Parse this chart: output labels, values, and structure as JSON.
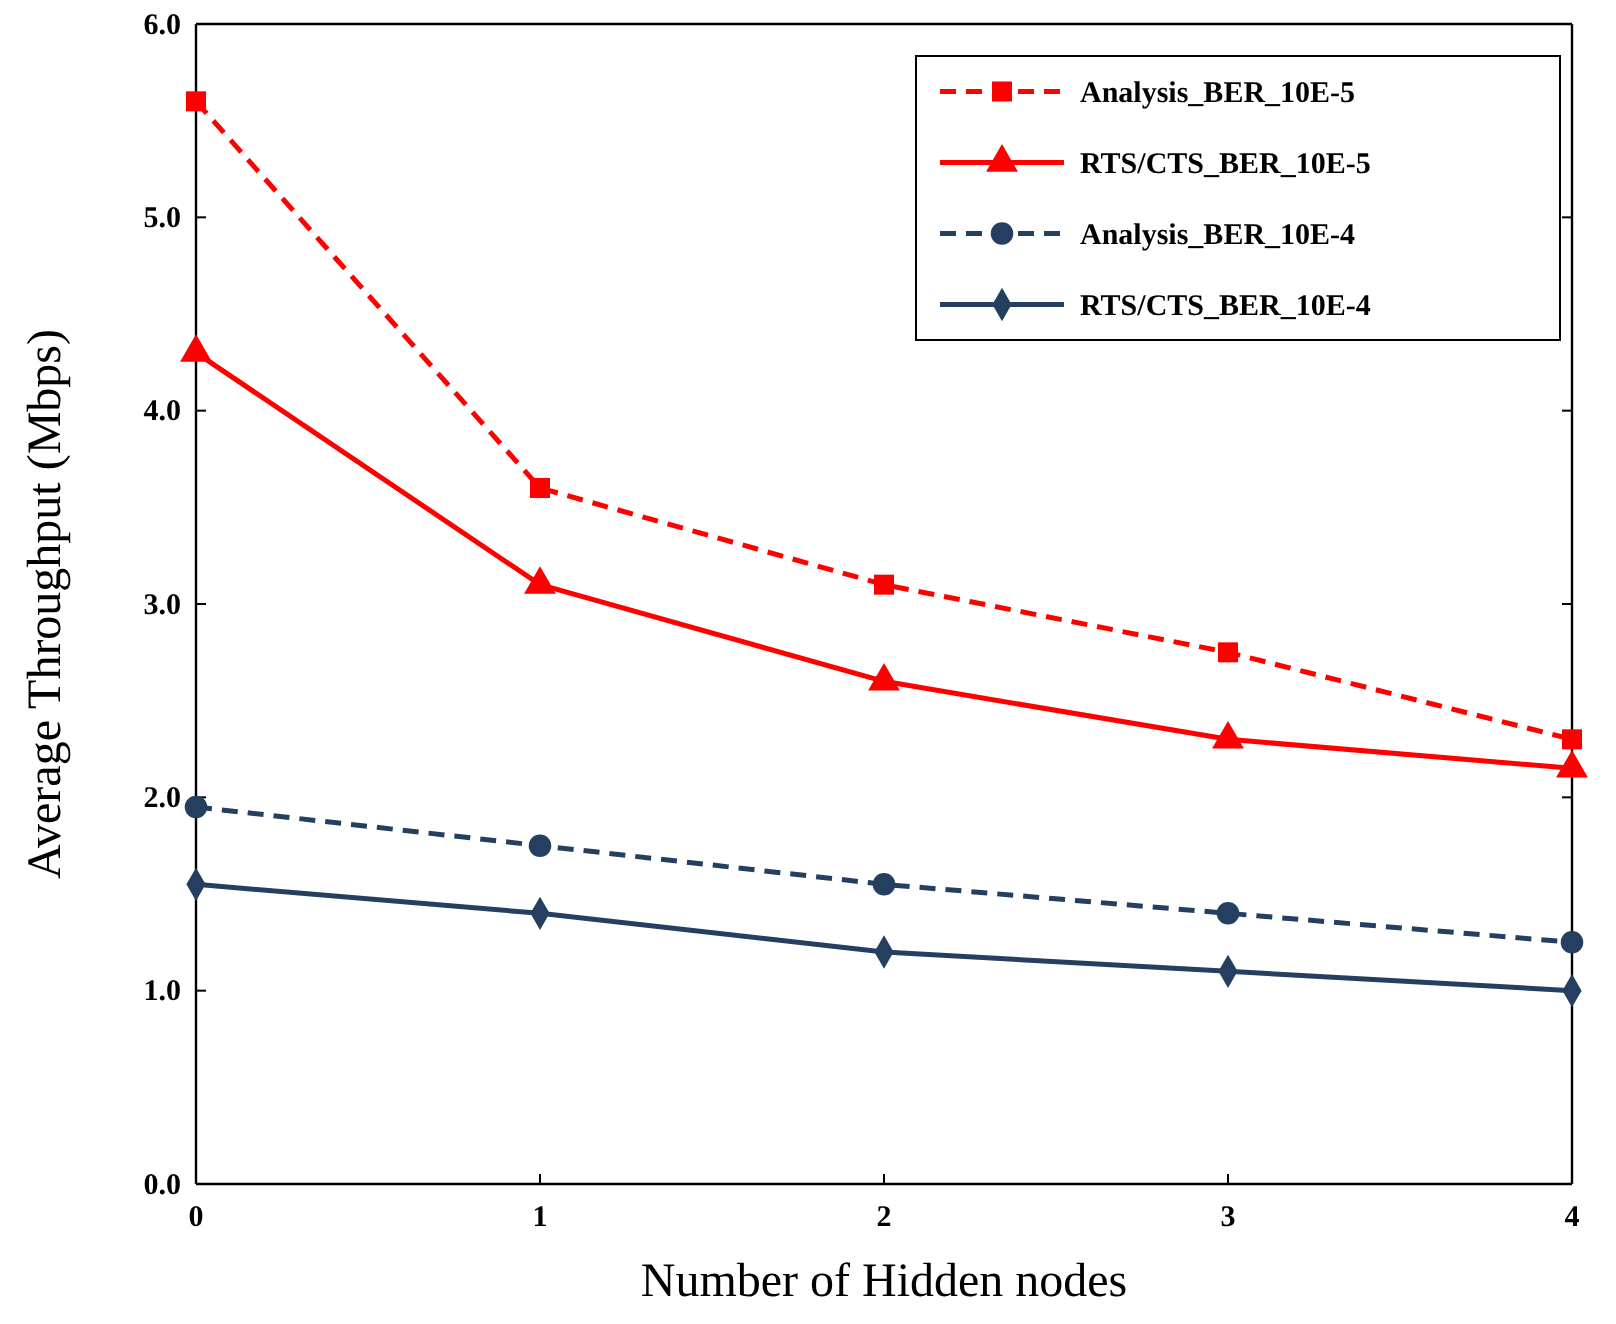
{
  "chart_data": {
    "type": "line",
    "xlabel": "Number of Hidden nodes",
    "ylabel": "Average Throughput (Mbps)",
    "x": [
      0,
      1,
      2,
      3,
      4
    ],
    "xlim": [
      0,
      4
    ],
    "xticks": [
      0,
      1,
      2,
      3,
      4
    ],
    "ylim": [
      0,
      6
    ],
    "yticks": [
      {
        "value": 0,
        "label": "0.0"
      },
      {
        "value": 1,
        "label": "1.0"
      },
      {
        "value": 2,
        "label": "2.0"
      },
      {
        "value": 3,
        "label": "3.0"
      },
      {
        "value": 4,
        "label": "4.0"
      },
      {
        "value": 5,
        "label": "5.0"
      },
      {
        "value": 6,
        "label": "6.0"
      }
    ],
    "grid": false,
    "legend": "top right",
    "series": [
      {
        "name": "Analysis_BER_10E-5",
        "color": "#ff0000",
        "marker": "square",
        "line_style": "dashed",
        "values": [
          5.6,
          3.6,
          3.1,
          2.75,
          2.3
        ]
      },
      {
        "name": "RTS/CTS_BER_10E-5",
        "color": "#ff0000",
        "marker": "triangle",
        "line_style": "solid",
        "values": [
          4.3,
          3.1,
          2.6,
          2.3,
          2.15
        ]
      },
      {
        "name": "Analysis_BER_10E-4",
        "color": "#243f60",
        "marker": "circle",
        "line_style": "dashed",
        "values": [
          1.95,
          1.75,
          1.55,
          1.4,
          1.25
        ]
      },
      {
        "name": "RTS/CTS_BER_10E-4",
        "color": "#243f60",
        "marker": "diamond",
        "line_style": "solid",
        "values": [
          1.55,
          1.4,
          1.2,
          1.1,
          1.0
        ]
      }
    ]
  }
}
